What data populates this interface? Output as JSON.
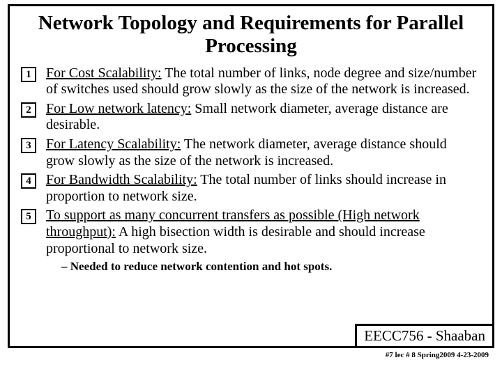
{
  "title": "Network Topology and Requirements for Parallel Processing",
  "items": [
    {
      "num": "1",
      "lead": "For Cost Scalability:",
      "rest": "  The total number of links, node degree and size/number of switches used should grow slowly as the size of the network is increased."
    },
    {
      "num": "2",
      "lead": "For Low network latency:",
      "rest": " Small network diameter, average distance are desirable."
    },
    {
      "num": "3",
      "lead": "For Latency Scalability:",
      "rest": " The network diameter, average distance should grow slowly as the size of the network is increased."
    },
    {
      "num": "4",
      "lead": "For Bandwidth Scalability:",
      "rest": " The total number of links should increase in proportion to network size."
    },
    {
      "num": "5",
      "lead": "To support as many concurrent transfers as possible (High network throughput):",
      "rest": " A high bisection width is desirable and should increase proportional to network size."
    }
  ],
  "sub_bullet": "Needed to reduce network contention and hot spots.",
  "course": "EECC756 - Shaaban",
  "footer": "#7   lec # 8     Spring2009  4-23-2009"
}
